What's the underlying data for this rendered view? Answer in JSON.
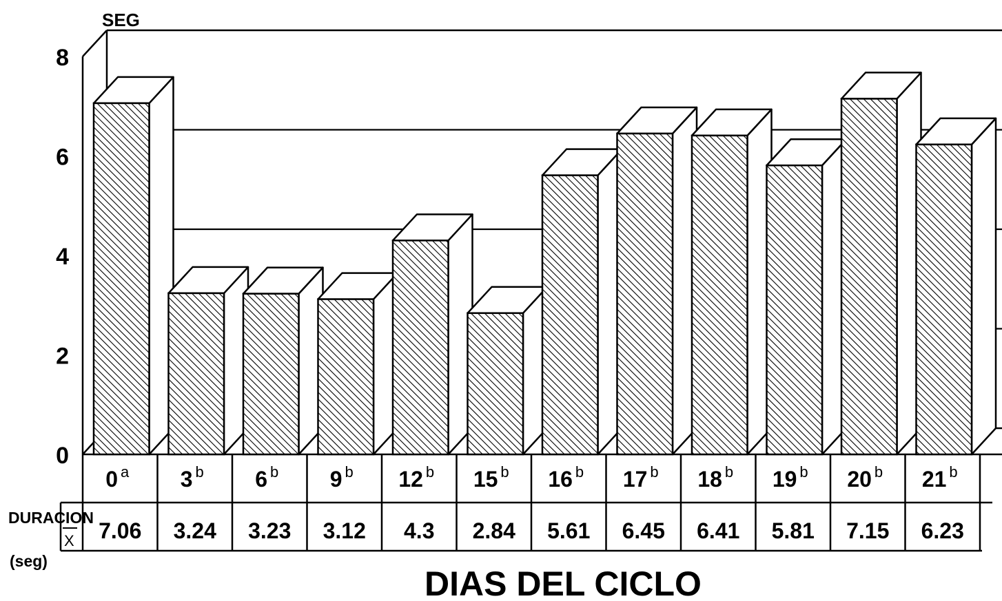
{
  "chart_data": {
    "type": "bar",
    "y_unit_label": "SEG",
    "ylim": [
      0,
      8
    ],
    "yticks": [
      "0",
      "2",
      "4",
      "6",
      "8"
    ],
    "grid": true,
    "categories": [
      "0",
      "3",
      "6",
      "9",
      "12",
      "15",
      "16",
      "17",
      "18",
      "19",
      "20",
      "21"
    ],
    "superscripts": [
      "a",
      "b",
      "b",
      "b",
      "b",
      "b",
      "b",
      "b",
      "b",
      "b",
      "b",
      "b"
    ],
    "series": [
      {
        "values": [
          7.06,
          3.24,
          3.23,
          3.12,
          4.3,
          2.84,
          5.61,
          6.45,
          6.41,
          5.81,
          7.15,
          6.23
        ]
      }
    ],
    "value_row_labels": [
      "7.06",
      "3.24",
      "3.23",
      "3.12",
      "4.3",
      "2.84",
      "5.61",
      "6.45",
      "6.41",
      "5.81",
      "7.15",
      "6.23"
    ],
    "row_label_line1": "DURACION",
    "row_label_symbol": "X",
    "row_label_unit": "(seg)",
    "xlabel": "DIAS DEL CICLO"
  }
}
